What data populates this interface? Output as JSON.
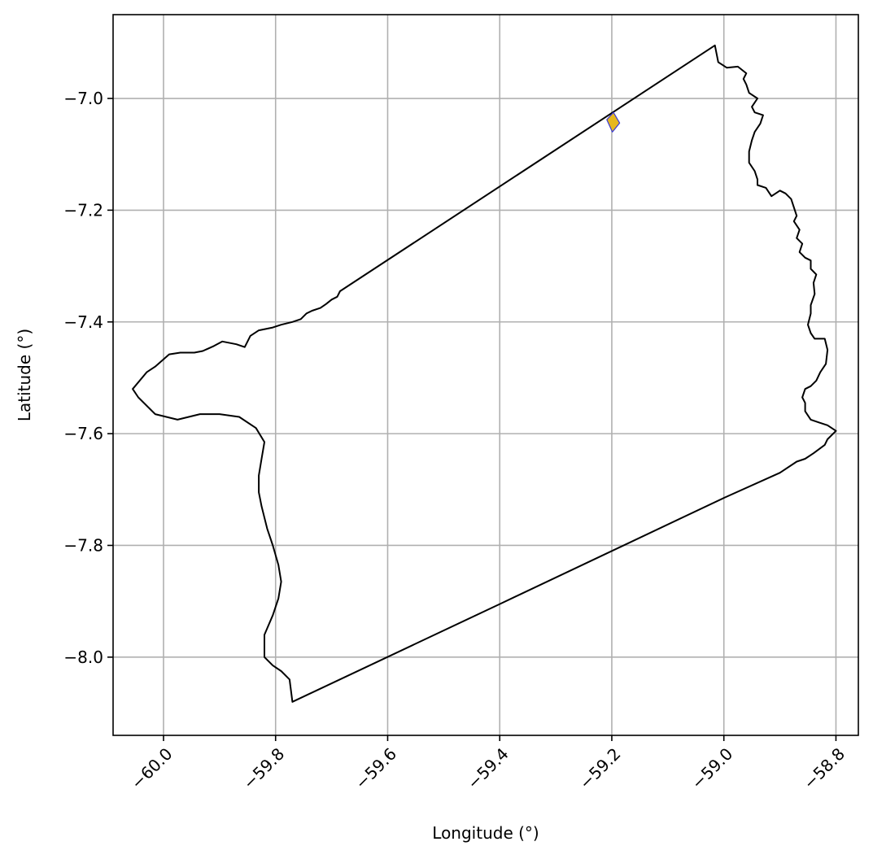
{
  "chart_data": {
    "type": "map",
    "title": "",
    "xlabel": "Longitude (°)",
    "ylabel": "Latitude (°)",
    "xlim": [
      -60.09,
      -58.76
    ],
    "ylim": [
      -8.14,
      -6.85
    ],
    "x_ticks": [
      -60.0,
      -59.8,
      -59.6,
      -59.4,
      -59.2,
      -59.0,
      -58.8
    ],
    "x_tick_labels": [
      "−60.0",
      "−59.8",
      "−59.6",
      "−59.4",
      "−59.2",
      "−59.0",
      "−58.8"
    ],
    "y_ticks": [
      -7.0,
      -7.2,
      -7.4,
      -7.6,
      -7.8,
      -8.0
    ],
    "y_tick_labels": [
      "−7.0",
      "−7.2",
      "−7.4",
      "−7.6",
      "−7.8",
      "−8.0"
    ],
    "grid": true,
    "colors": {
      "boundary": "#000000",
      "highlight_fill": "#e6b81e",
      "highlight_edge": "#3a3ad6",
      "grid": "#b0b0b0"
    },
    "boundary": [
      [
        -59.016,
        -6.905
      ],
      [
        -59.01,
        -6.935
      ],
      [
        -58.995,
        -6.945
      ],
      [
        -58.975,
        -6.943
      ],
      [
        -58.96,
        -6.955
      ],
      [
        -58.965,
        -6.965
      ],
      [
        -58.96,
        -6.975
      ],
      [
        -58.955,
        -6.99
      ],
      [
        -58.94,
        -7.0
      ],
      [
        -58.95,
        -7.015
      ],
      [
        -58.945,
        -7.025
      ],
      [
        -58.93,
        -7.03
      ],
      [
        -58.935,
        -7.045
      ],
      [
        -58.945,
        -7.06
      ],
      [
        -58.95,
        -7.075
      ],
      [
        -58.955,
        -7.095
      ],
      [
        -58.955,
        -7.115
      ],
      [
        -58.945,
        -7.13
      ],
      [
        -58.94,
        -7.145
      ],
      [
        -58.94,
        -7.155
      ],
      [
        -58.925,
        -7.16
      ],
      [
        -58.915,
        -7.175
      ],
      [
        -58.9,
        -7.165
      ],
      [
        -58.89,
        -7.17
      ],
      [
        -58.88,
        -7.18
      ],
      [
        -58.875,
        -7.195
      ],
      [
        -58.87,
        -7.21
      ],
      [
        -58.875,
        -7.22
      ],
      [
        -58.865,
        -7.235
      ],
      [
        -58.87,
        -7.25
      ],
      [
        -58.86,
        -7.26
      ],
      [
        -58.865,
        -7.275
      ],
      [
        -58.855,
        -7.285
      ],
      [
        -58.845,
        -7.29
      ],
      [
        -58.845,
        -7.305
      ],
      [
        -58.835,
        -7.315
      ],
      [
        -58.84,
        -7.33
      ],
      [
        -58.838,
        -7.35
      ],
      [
        -58.845,
        -7.37
      ],
      [
        -58.845,
        -7.385
      ],
      [
        -58.85,
        -7.405
      ],
      [
        -58.845,
        -7.42
      ],
      [
        -58.838,
        -7.43
      ],
      [
        -58.82,
        -7.43
      ],
      [
        -58.815,
        -7.45
      ],
      [
        -58.818,
        -7.475
      ],
      [
        -58.828,
        -7.49
      ],
      [
        -58.835,
        -7.505
      ],
      [
        -58.845,
        -7.515
      ],
      [
        -58.855,
        -7.52
      ],
      [
        -58.86,
        -7.535
      ],
      [
        -58.855,
        -7.545
      ],
      [
        -58.855,
        -7.56
      ],
      [
        -58.845,
        -7.575
      ],
      [
        -58.83,
        -7.58
      ],
      [
        -58.815,
        -7.585
      ],
      [
        -58.8,
        -7.595
      ],
      [
        -58.815,
        -7.61
      ],
      [
        -58.82,
        -7.62
      ],
      [
        -58.84,
        -7.635
      ],
      [
        -58.855,
        -7.645
      ],
      [
        -58.87,
        -7.65
      ],
      [
        -58.9,
        -7.67
      ],
      [
        -59.0,
        -7.715
      ],
      [
        -59.4,
        -7.905
      ],
      [
        -59.77,
        -8.08
      ],
      [
        -59.775,
        -8.04
      ],
      [
        -59.79,
        -8.025
      ],
      [
        -59.805,
        -8.015
      ],
      [
        -59.82,
        -8.0
      ],
      [
        -59.82,
        -7.96
      ],
      [
        -59.805,
        -7.925
      ],
      [
        -59.795,
        -7.895
      ],
      [
        -59.79,
        -7.865
      ],
      [
        -59.795,
        -7.835
      ],
      [
        -59.805,
        -7.8
      ],
      [
        -59.815,
        -7.77
      ],
      [
        -59.825,
        -7.73
      ],
      [
        -59.83,
        -7.705
      ],
      [
        -59.83,
        -7.675
      ],
      [
        -59.825,
        -7.645
      ],
      [
        -59.82,
        -7.615
      ],
      [
        -59.835,
        -7.59
      ],
      [
        -59.865,
        -7.57
      ],
      [
        -59.9,
        -7.565
      ],
      [
        -59.935,
        -7.565
      ],
      [
        -59.975,
        -7.575
      ],
      [
        -60.015,
        -7.565
      ],
      [
        -60.045,
        -7.535
      ],
      [
        -60.055,
        -7.52
      ],
      [
        -60.03,
        -7.49
      ],
      [
        -60.015,
        -7.48
      ],
      [
        -59.99,
        -7.458
      ],
      [
        -59.97,
        -7.455
      ],
      [
        -59.945,
        -7.455
      ],
      [
        -59.93,
        -7.452
      ],
      [
        -59.91,
        -7.443
      ],
      [
        -59.895,
        -7.435
      ],
      [
        -59.87,
        -7.44
      ],
      [
        -59.855,
        -7.445
      ],
      [
        -59.845,
        -7.425
      ],
      [
        -59.83,
        -7.415
      ],
      [
        -59.805,
        -7.41
      ],
      [
        -59.79,
        -7.405
      ],
      [
        -59.77,
        -7.4
      ],
      [
        -59.755,
        -7.395
      ],
      [
        -59.745,
        -7.385
      ],
      [
        -59.735,
        -7.38
      ],
      [
        -59.72,
        -7.375
      ],
      [
        -59.71,
        -7.368
      ],
      [
        -59.7,
        -7.36
      ],
      [
        -59.69,
        -7.355
      ],
      [
        -59.685,
        -7.345
      ],
      [
        -59.016,
        -6.905
      ]
    ],
    "highlight": [
      [
        -59.197,
        -7.025
      ],
      [
        -59.186,
        -7.044
      ],
      [
        -59.199,
        -7.06
      ],
      [
        -59.209,
        -7.038
      ],
      [
        -59.2,
        -7.028
      ]
    ]
  }
}
